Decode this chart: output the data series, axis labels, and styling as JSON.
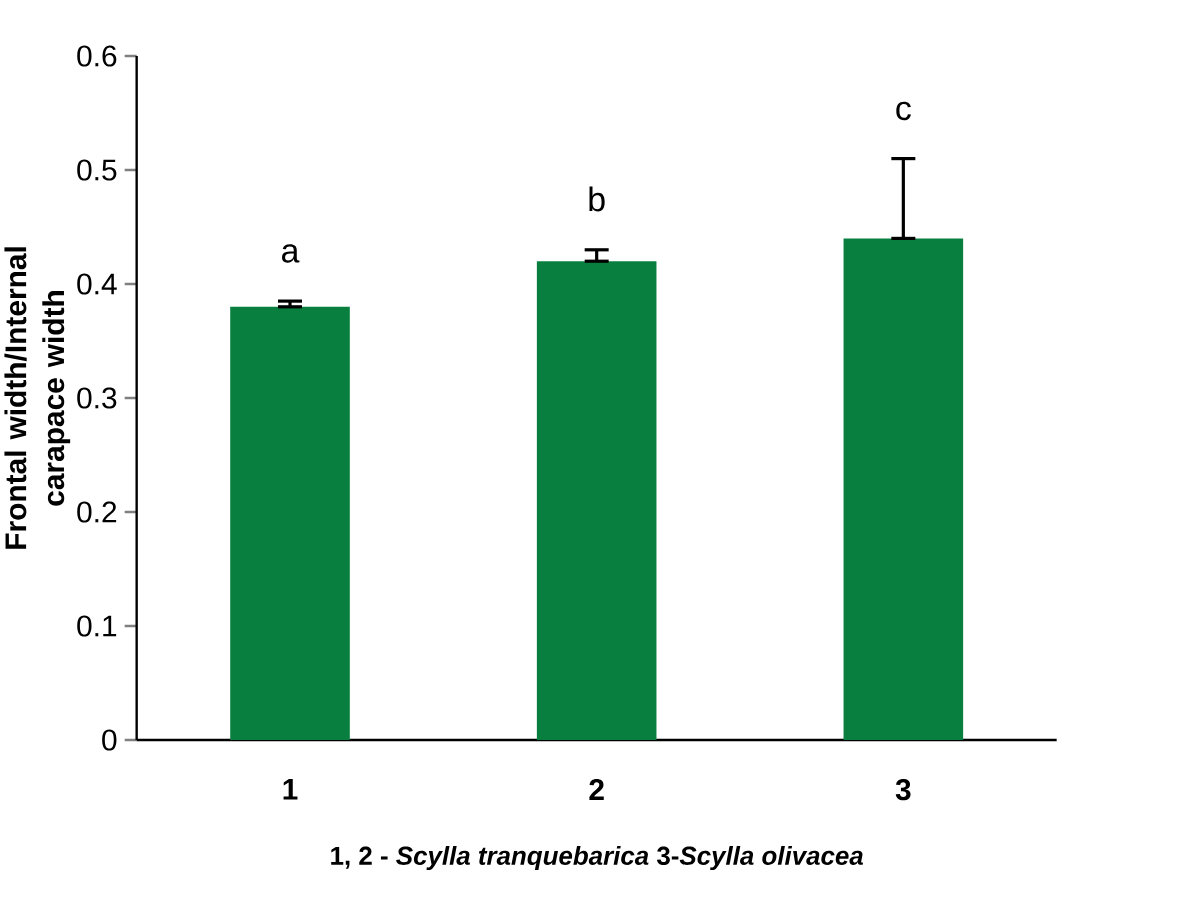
{
  "chart_data": {
    "type": "bar",
    "xlabel": "1, 2 - *Scylla tranquebarica* 3-*Scylla olivacea*",
    "ylabel": "Frontal width/Internal carapace width",
    "categories": [
      "1",
      "2",
      "3"
    ],
    "values": [
      0.38,
      0.42,
      0.44
    ],
    "errors": [
      [
        0.38,
        0.385
      ],
      [
        0.42,
        0.43
      ],
      [
        0.44,
        0.51
      ]
    ],
    "color": "#087f3f",
    "ylim": [
      0,
      0.6
    ],
    "yticks": [
      0,
      0.1,
      0.2,
      0.3,
      0.4,
      0.5,
      0.6
    ],
    "annotations": [
      "a",
      "b",
      "c"
    ]
  }
}
